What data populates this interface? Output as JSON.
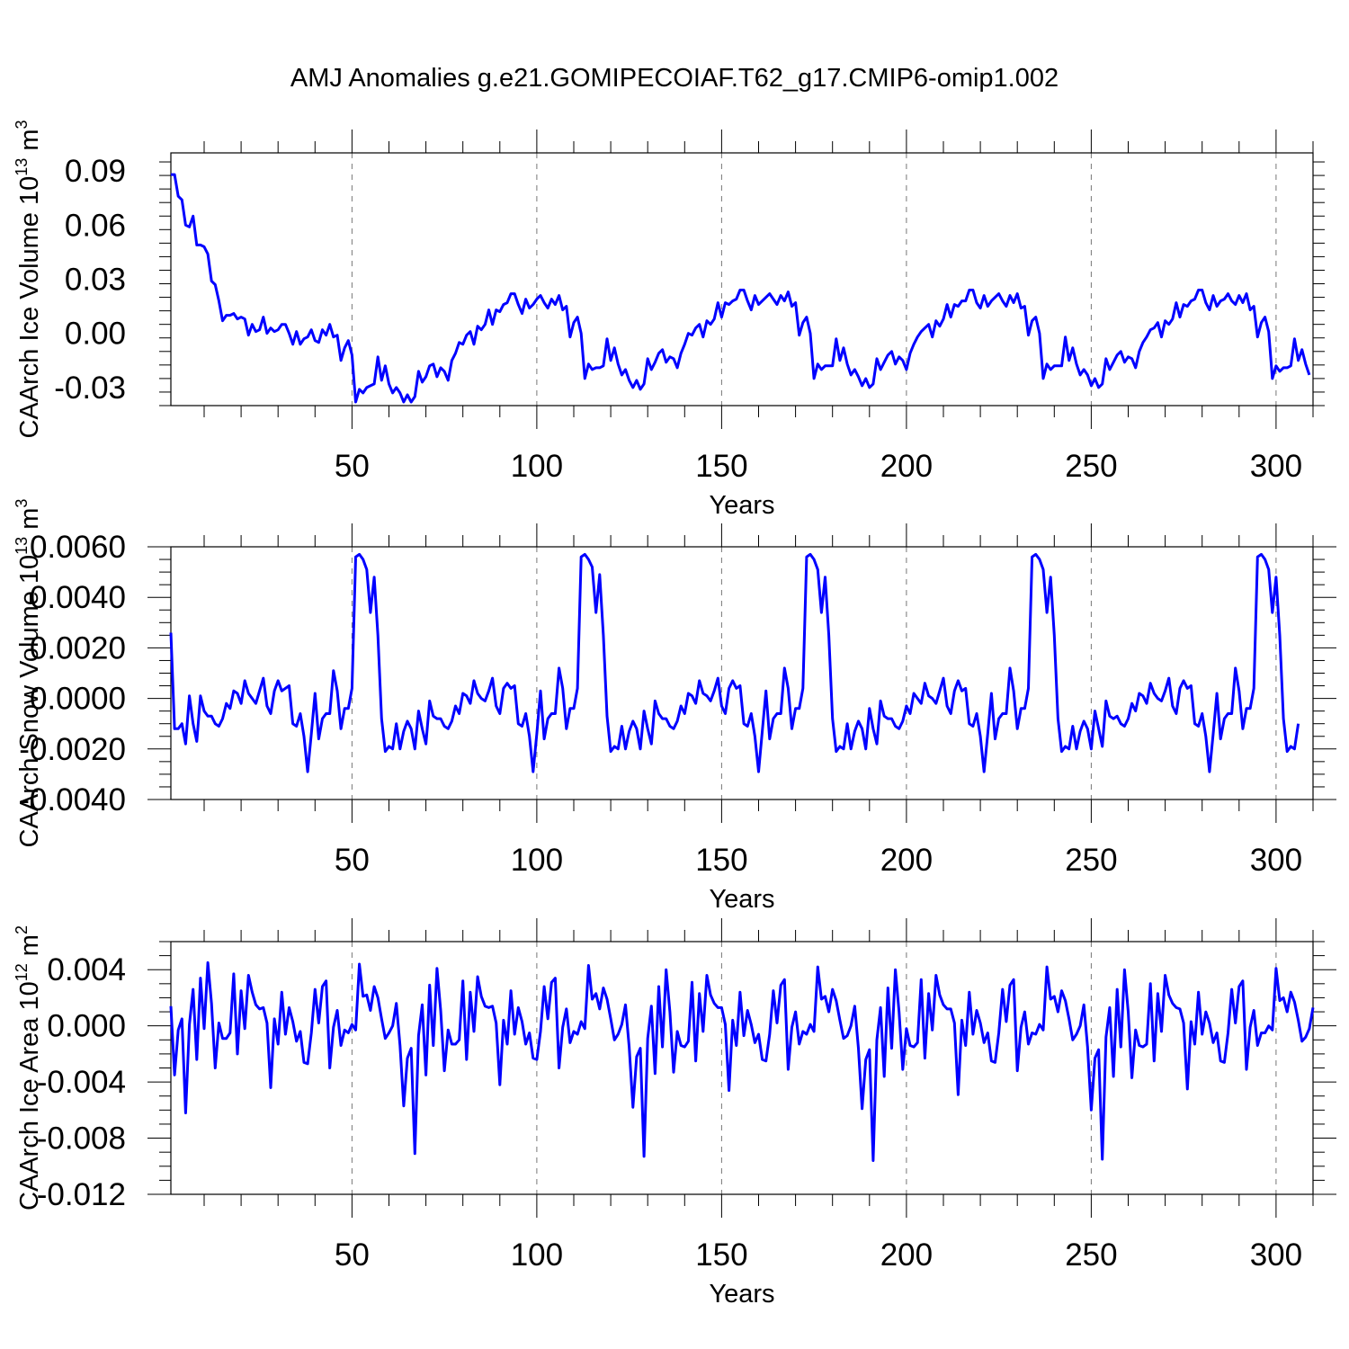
{
  "chart_data": {
    "title": "AMJ Anomalies g.e21.GOMIPECOIAF.T62_g17.CMIP6-omip1.002",
    "type": "line",
    "colors": {
      "line": "#0000ff",
      "grid": "#777777"
    },
    "panels": [
      {
        "id": "ice-volume",
        "ylabel": "CAArch Ice Volume 10",
        "ylabel_exp": "13",
        "ylabel_unit": " m",
        "ylabel_unit_exp": "3",
        "xlabel": "Years",
        "xlim": [
          1,
          310
        ],
        "ylim": [
          -0.04,
          0.1
        ],
        "yticks": [
          -0.03,
          0.0,
          0.03,
          0.06,
          0.09
        ],
        "yticklabels": [
          "-0.03",
          "0.00",
          "0.03",
          "0.06",
          "0.09"
        ],
        "xticks": [
          50,
          100,
          150,
          200,
          250,
          300
        ],
        "xticklabels": [
          "50",
          "100",
          "150",
          "200",
          "250",
          "300"
        ],
        "x_start": 1,
        "values": [
          0.088,
          0.088,
          0.076,
          0.074,
          0.06,
          0.059,
          0.065,
          0.049,
          0.049,
          0.048,
          0.044,
          0.029,
          0.027,
          0.018,
          0.007,
          0.01,
          0.01,
          0.011,
          0.008,
          0.009,
          0.008,
          -0.001,
          0.005,
          0.001,
          0.002,
          0.009,
          0.0,
          0.003,
          0.001,
          0.002,
          0.005,
          0.005,
          0.0,
          -0.006,
          0.001,
          -0.006,
          -0.003,
          -0.002,
          0.002,
          -0.004,
          -0.005,
          0.002,
          -0.001,
          0.005,
          -0.002,
          -0.001,
          -0.015,
          -0.008,
          -0.004,
          -0.012,
          -0.038,
          -0.031,
          -0.033,
          -0.03,
          -0.029,
          -0.028,
          -0.013,
          -0.026,
          -0.018,
          -0.028,
          -0.033,
          -0.03,
          -0.033,
          -0.038,
          -0.034,
          -0.038,
          -0.035,
          -0.021,
          -0.027,
          -0.024,
          -0.018,
          -0.017,
          -0.024,
          -0.019,
          -0.021,
          -0.026,
          -0.015,
          -0.011,
          -0.005,
          -0.006,
          -0.001,
          0.001,
          -0.006,
          0.004,
          0.002,
          0.005,
          0.013,
          0.005,
          0.013,
          0.012,
          0.016,
          0.017,
          0.022,
          0.022,
          0.016,
          0.011,
          0.019,
          0.014,
          0.016,
          0.019,
          0.021,
          0.017,
          0.014,
          0.019,
          0.016,
          0.021,
          0.013,
          0.015,
          -0.002,
          0.006,
          0.009,
          0.0,
          -0.025,
          -0.017,
          -0.02,
          -0.019,
          -0.019,
          -0.018,
          -0.003,
          -0.015,
          -0.008,
          -0.017,
          -0.023,
          -0.02,
          -0.026,
          -0.03,
          -0.026,
          -0.031,
          -0.028,
          -0.014,
          -0.02,
          -0.016,
          -0.011,
          -0.009,
          -0.016,
          -0.013,
          -0.014,
          -0.019,
          -0.011,
          -0.006,
          0.0,
          -0.001,
          0.003,
          0.005,
          -0.002,
          0.007,
          0.005,
          0.008,
          0.017,
          0.009,
          0.017,
          0.016,
          0.018,
          0.019,
          0.024,
          0.024,
          0.018,
          0.013,
          0.021,
          0.016,
          0.018,
          0.02,
          0.022,
          0.019,
          0.016,
          0.021,
          0.018,
          0.023,
          0.015,
          0.017,
          -0.001,
          0.006,
          0.009,
          0.0,
          -0.025,
          -0.017,
          -0.02,
          -0.018,
          -0.018,
          -0.018,
          -0.003,
          -0.015,
          -0.008,
          -0.017,
          -0.023,
          -0.02,
          -0.024,
          -0.029,
          -0.025,
          -0.03,
          -0.028,
          -0.014,
          -0.02,
          -0.016,
          -0.012,
          -0.01,
          -0.017,
          -0.013,
          -0.015,
          -0.02,
          -0.011,
          -0.006,
          -0.002,
          0.001,
          0.003,
          0.005,
          -0.002,
          0.007,
          0.004,
          0.008,
          0.016,
          0.009,
          0.016,
          0.015,
          0.018,
          0.018,
          0.024,
          0.024,
          0.017,
          0.014,
          0.021,
          0.015,
          0.018,
          0.02,
          0.022,
          0.018,
          0.015,
          0.021,
          0.017,
          0.022,
          0.014,
          0.015,
          -0.001,
          0.007,
          0.009,
          0.0,
          -0.025,
          -0.017,
          -0.02,
          -0.018,
          -0.018,
          -0.018,
          -0.002,
          -0.015,
          -0.008,
          -0.017,
          -0.023,
          -0.02,
          -0.023,
          -0.029,
          -0.025,
          -0.03,
          -0.028,
          -0.014,
          -0.02,
          -0.016,
          -0.012,
          -0.01,
          -0.016,
          -0.013,
          -0.014,
          -0.019,
          -0.01,
          -0.005,
          -0.002,
          0.002,
          0.003,
          0.006,
          -0.002,
          0.007,
          0.005,
          0.008,
          0.017,
          0.009,
          0.016,
          0.015,
          0.018,
          0.019,
          0.024,
          0.024,
          0.017,
          0.013,
          0.021,
          0.015,
          0.018,
          0.019,
          0.022,
          0.018,
          0.016,
          0.021,
          0.017,
          0.022,
          0.013,
          0.015,
          -0.002,
          0.006,
          0.009,
          0.001,
          -0.025,
          -0.018,
          -0.021,
          -0.019,
          -0.019,
          -0.018,
          -0.003,
          -0.015,
          -0.009,
          -0.017,
          -0.023
        ]
      },
      {
        "id": "snow-volume",
        "ylabel": "CAArch Snow Volume 10",
        "ylabel_exp": "13",
        "ylabel_unit": " m",
        "ylabel_unit_exp": "3",
        "xlabel": "Years",
        "xlim": [
          1,
          310
        ],
        "ylim": [
          -0.004,
          0.006
        ],
        "yticks": [
          -0.004,
          -0.002,
          0.0,
          0.002,
          0.004,
          0.006
        ],
        "yticklabels": [
          "-0.0040",
          "-0.0020",
          "0.0000",
          "0.0020",
          "0.0040",
          "0.0060"
        ],
        "xticks": [
          50,
          100,
          150,
          200,
          250,
          300
        ],
        "xticklabels": [
          "50",
          "100",
          "150",
          "200",
          "250",
          "300"
        ],
        "x_start": 1,
        "values": [
          0.0026,
          -0.0012,
          -0.0012,
          -0.001,
          -0.0018,
          0.0001,
          -0.001,
          -0.0017,
          0.0001,
          -0.0005,
          -0.0007,
          -0.0007,
          -0.001,
          -0.0011,
          -0.0008,
          -0.0002,
          -0.0004,
          0.0003,
          0.0002,
          -0.0002,
          0.0007,
          0.0002,
          0.0,
          -0.0002,
          0.0003,
          0.0008,
          -0.0003,
          -0.0006,
          0.0003,
          0.0007,
          0.0003,
          0.0004,
          0.0005,
          -0.001,
          -0.0011,
          -0.0006,
          -0.0015,
          -0.0029,
          -0.0014,
          0.0002,
          -0.0016,
          -0.0008,
          -0.0006,
          -0.0006,
          0.0011,
          0.0003,
          -0.0012,
          -0.0004,
          -0.0004,
          0.0004,
          0.0056,
          0.0057,
          0.0055,
          0.0051,
          0.0034,
          0.0048,
          0.0025,
          -0.0008,
          -0.0021,
          -0.0019,
          -0.002,
          -0.001,
          -0.002,
          -0.0013,
          -0.0009,
          -0.0012,
          -0.002,
          -0.0005,
          -0.0012,
          -0.0018,
          -0.0001,
          -0.0007,
          -0.0008,
          -0.0008,
          -0.0011,
          -0.0012,
          -0.0009,
          -0.0003,
          -0.0006,
          0.0002,
          0.0001,
          -0.0002,
          0.0007,
          0.0002,
          0.0,
          -0.0001,
          0.0003,
          0.0008,
          -0.0003,
          -0.0006,
          0.0004,
          0.0006,
          0.0004,
          0.0005,
          -0.001,
          -0.0011,
          -0.0006,
          -0.0015,
          -0.0029,
          -0.0014,
          0.0003,
          -0.0016,
          -0.0008,
          -0.0006,
          -0.0006,
          0.0012,
          0.0004,
          -0.0012,
          -0.0004,
          -0.0004,
          0.0004,
          0.0056,
          0.0057,
          0.0055,
          0.0052,
          0.0034,
          0.0049,
          0.0025,
          -0.0007,
          -0.0021,
          -0.0019,
          -0.002,
          -0.0011,
          -0.002,
          -0.0013,
          -0.0009,
          -0.0012,
          -0.002,
          -0.0005,
          -0.0012,
          -0.0018,
          -0.0001,
          -0.0006,
          -0.0008,
          -0.0008,
          -0.0011,
          -0.0012,
          -0.0009,
          -0.0003,
          -0.0006,
          0.0002,
          0.0001,
          -0.0002,
          0.0007,
          0.0002,
          0.0001,
          -0.0001,
          0.0003,
          0.0008,
          -0.0003,
          -0.0006,
          0.0004,
          0.0007,
          0.0004,
          0.0005,
          -0.001,
          -0.0011,
          -0.0006,
          -0.0015,
          -0.0029,
          -0.0013,
          0.0003,
          -0.0016,
          -0.0008,
          -0.0006,
          -0.0006,
          0.0012,
          0.0004,
          -0.0012,
          -0.0004,
          -0.0004,
          0.0004,
          0.0056,
          0.0057,
          0.0055,
          0.0051,
          0.0034,
          0.0048,
          0.0025,
          -0.0008,
          -0.0021,
          -0.0019,
          -0.002,
          -0.001,
          -0.002,
          -0.0013,
          -0.0009,
          -0.0012,
          -0.002,
          -0.0004,
          -0.0012,
          -0.0018,
          -0.0001,
          -0.0007,
          -0.0008,
          -0.0008,
          -0.0011,
          -0.0012,
          -0.0009,
          -0.0003,
          -0.0006,
          0.0002,
          0.0,
          -0.0002,
          0.0006,
          0.0001,
          0.0,
          -0.0002,
          0.0003,
          0.0008,
          -0.0003,
          -0.0006,
          0.0003,
          0.0007,
          0.0003,
          0.0004,
          -0.001,
          -0.0011,
          -0.0006,
          -0.0015,
          -0.0029,
          -0.0014,
          0.0002,
          -0.0016,
          -0.0008,
          -0.0006,
          -0.0006,
          0.0012,
          0.0003,
          -0.0012,
          -0.0004,
          -0.0004,
          0.0004,
          0.0056,
          0.0057,
          0.0055,
          0.0051,
          0.0034,
          0.0048,
          0.0025,
          -0.0008,
          -0.0021,
          -0.0019,
          -0.002,
          -0.0011,
          -0.002,
          -0.0013,
          -0.0009,
          -0.0012,
          -0.002,
          -0.0005,
          -0.0012,
          -0.0019,
          -0.0001,
          -0.0007,
          -0.0008,
          -0.0007,
          -0.001,
          -0.0011,
          -0.0008,
          -0.0002,
          -0.0005,
          0.0002,
          0.0001,
          -0.0002,
          0.0006,
          0.0002,
          0.0,
          -0.0001,
          0.0003,
          0.0008,
          -0.0003,
          -0.0006,
          0.0004,
          0.0007,
          0.0004,
          0.0005,
          -0.001,
          -0.0011,
          -0.0006,
          -0.0015,
          -0.0029,
          -0.0014,
          0.0002,
          -0.0016,
          -0.0008,
          -0.0006,
          -0.0006,
          0.0012,
          0.0003,
          -0.0012,
          -0.0004,
          -0.0004,
          0.0004,
          0.0056,
          0.0057,
          0.0055,
          0.0051,
          0.0034,
          0.0048,
          0.0025,
          -0.0008,
          -0.0021,
          -0.0019,
          -0.002,
          -0.001
        ]
      },
      {
        "id": "ice-area",
        "ylabel": "CAArch Ice Area 10",
        "ylabel_exp": "12",
        "ylabel_unit": " m",
        "ylabel_unit_exp": "2",
        "xlabel": "Years",
        "xlim": [
          1,
          310
        ],
        "ylim": [
          -0.012,
          0.006
        ],
        "yticks": [
          -0.012,
          -0.008,
          -0.004,
          0.0,
          0.004
        ],
        "yticklabels": [
          "-0.012",
          "-0.008",
          "-0.004",
          "0.000",
          "0.004"
        ],
        "xticks": [
          50,
          100,
          150,
          200,
          250,
          300
        ],
        "xticklabels": [
          "50",
          "100",
          "150",
          "200",
          "250",
          "300"
        ],
        "x_start": 1,
        "values": [
          0.0014,
          -0.0035,
          -0.0003,
          0.0005,
          -0.0062,
          0.0001,
          0.0026,
          -0.0024,
          0.0034,
          -0.0002,
          0.0045,
          0.0016,
          -0.003,
          0.0002,
          -0.0009,
          -0.0009,
          -0.0005,
          0.0037,
          -0.002,
          0.0025,
          -0.0002,
          0.0036,
          0.0024,
          0.0015,
          0.0012,
          0.0013,
          0.0002,
          -0.0044,
          0.0005,
          -0.0013,
          0.0024,
          -0.0006,
          0.0013,
          0.0003,
          -0.0011,
          -0.0004,
          -0.0026,
          -0.0027,
          -0.0005,
          0.0026,
          0.0002,
          0.0028,
          0.0032,
          -0.003,
          -0.0001,
          0.0011,
          -0.0014,
          -0.0003,
          -0.0005,
          0.0001,
          -0.0003,
          0.0044,
          0.0021,
          0.0022,
          0.0011,
          0.0028,
          0.002,
          0.0005,
          -0.0009,
          -0.0005,
          0.0,
          0.0016,
          -0.0014,
          -0.0057,
          -0.0023,
          -0.0016,
          -0.0091,
          -0.0007,
          0.0015,
          -0.0035,
          0.0029,
          -0.0014,
          0.0041,
          0.0011,
          -0.0032,
          -0.0003,
          -0.0013,
          -0.0013,
          -0.001,
          0.0032,
          -0.0024,
          0.0024,
          -0.0004,
          0.0035,
          0.0021,
          0.0014,
          0.0013,
          0.0014,
          0.0002,
          -0.0042,
          0.0004,
          -0.0013,
          0.0025,
          -0.0006,
          0.0013,
          0.0003,
          -0.0013,
          -0.0005,
          -0.0023,
          -0.0024,
          -0.0004,
          0.0028,
          0.0005,
          0.0031,
          0.0034,
          -0.003,
          -0.0001,
          0.0012,
          -0.0012,
          -0.0004,
          -0.0006,
          0.0003,
          -0.0002,
          0.0043,
          0.0019,
          0.0023,
          0.0012,
          0.0027,
          0.0019,
          0.0005,
          -0.001,
          -0.0006,
          0.0001,
          0.0015,
          -0.0015,
          -0.0058,
          -0.0022,
          -0.0016,
          -0.0093,
          -0.0009,
          0.0014,
          -0.0034,
          0.0028,
          -0.0015,
          0.004,
          0.001,
          -0.0033,
          -0.0004,
          -0.0014,
          -0.0015,
          -0.0011,
          0.0031,
          -0.0025,
          0.0023,
          -0.0004,
          0.0036,
          0.0022,
          0.0016,
          0.0013,
          0.0013,
          0.0001,
          -0.0046,
          0.0004,
          -0.0014,
          0.0024,
          -0.0007,
          0.0011,
          0.0001,
          -0.0012,
          -0.0006,
          -0.0024,
          -0.0025,
          -0.0006,
          0.0025,
          0.0002,
          0.0029,
          0.0033,
          -0.0031,
          -0.0001,
          0.001,
          -0.0013,
          -0.0004,
          -0.0006,
          0.0001,
          -0.0004,
          0.0042,
          0.0019,
          0.0021,
          0.001,
          0.0026,
          0.0018,
          0.0004,
          -0.0009,
          -0.0007,
          0.0,
          0.0014,
          -0.0016,
          -0.0059,
          -0.0024,
          -0.0017,
          -0.0096,
          -0.001,
          0.0013,
          -0.0036,
          0.0027,
          -0.0016,
          0.004,
          0.001,
          -0.0031,
          -0.0002,
          -0.0014,
          -0.0015,
          -0.0012,
          0.0033,
          -0.0023,
          0.0023,
          -0.0003,
          0.0036,
          0.0022,
          0.0015,
          0.0012,
          0.0012,
          0.0002,
          -0.0049,
          0.0004,
          -0.0014,
          0.0024,
          -0.0006,
          0.0011,
          0.0002,
          -0.0012,
          -0.0005,
          -0.0025,
          -0.0026,
          -0.0005,
          0.0026,
          0.0003,
          0.0029,
          0.0033,
          -0.0032,
          -0.0001,
          0.001,
          -0.0013,
          -0.0005,
          -0.0006,
          0.0001,
          -0.0003,
          0.0042,
          0.0019,
          0.0021,
          0.001,
          0.0025,
          0.0018,
          0.0005,
          -0.001,
          -0.0006,
          0.0,
          0.0015,
          -0.0015,
          -0.006,
          -0.0023,
          -0.0017,
          -0.0095,
          -0.0008,
          0.0013,
          -0.0036,
          0.0026,
          -0.0015,
          0.004,
          0.001,
          -0.0037,
          -0.0003,
          -0.0014,
          -0.0015,
          -0.0013,
          0.003,
          -0.0025,
          0.0023,
          -0.0004,
          0.0036,
          0.0022,
          0.0016,
          0.0013,
          0.0012,
          0.0002,
          -0.0045,
          0.0003,
          -0.0013,
          0.0024,
          -0.0006,
          0.001,
          0.0002,
          -0.0012,
          -0.0005,
          -0.0025,
          -0.0026,
          -0.0005,
          0.0026,
          0.0002,
          0.0028,
          0.0032,
          -0.0031,
          -0.0001,
          0.0011,
          -0.0014,
          -0.0005,
          -0.0005,
          0.0,
          -0.0003,
          0.0041,
          0.0018,
          0.002,
          0.001,
          0.0024,
          0.0017,
          0.0004,
          -0.0011,
          -0.0008,
          -0.0002,
          0.0013
        ]
      }
    ]
  }
}
